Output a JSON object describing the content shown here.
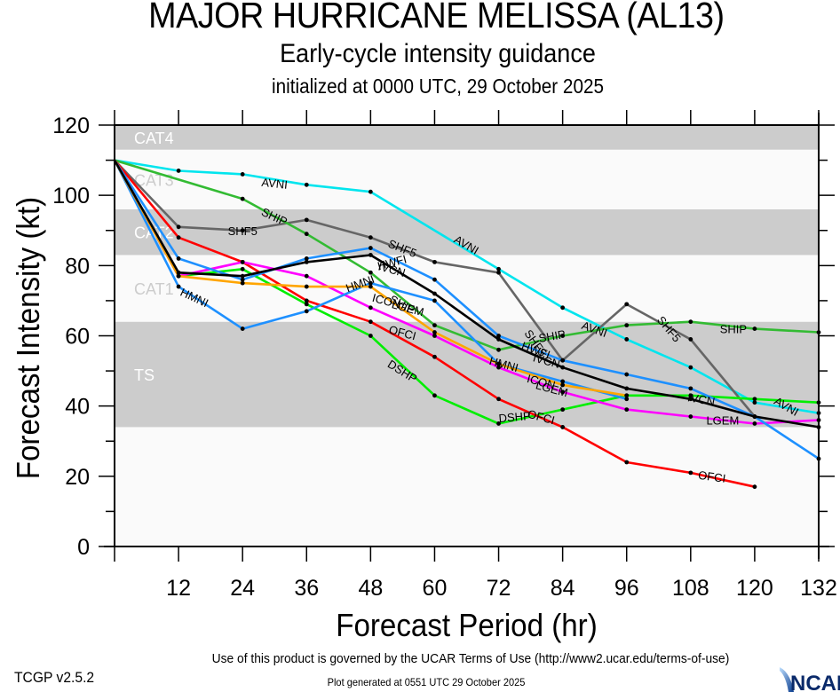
{
  "chart_data": {
    "type": "line",
    "title": "MAJOR HURRICANE MELISSA (AL13)",
    "subtitle": "Early-cycle intensity guidance",
    "initialized": "initialized at 0000 UTC, 29 October 2025",
    "xlabel": "Forecast Period (hr)",
    "ylabel": "Forecast Intensity (kt)",
    "xlim": [
      0,
      132
    ],
    "ylim": [
      0,
      120
    ],
    "xticks": [
      12,
      24,
      36,
      48,
      60,
      72,
      84,
      96,
      108,
      120,
      132
    ],
    "yticks": [
      0,
      20,
      40,
      60,
      80,
      100,
      120
    ],
    "grid": false,
    "bands": [
      {
        "label": "TS",
        "from": 34,
        "to": 64,
        "shade": "#cccccc",
        "label_color": "#ffffff"
      },
      {
        "label": "CAT1",
        "from": 64,
        "to": 83,
        "shade": "#fafafa",
        "label_color": "#cccccc"
      },
      {
        "label": "CAT2",
        "from": 83,
        "to": 96,
        "shade": "#cccccc",
        "label_color": "#ffffff"
      },
      {
        "label": "CAT3",
        "from": 96,
        "to": 113,
        "shade": "#fafafa",
        "label_color": "#cccccc"
      },
      {
        "label": "CAT4",
        "from": 113,
        "to": 120,
        "shade": "#cccccc",
        "label_color": "#ffffff"
      }
    ],
    "below_ts_shade": "#fafafa",
    "series": [
      {
        "name": "AVNI",
        "color": "#00e5ee",
        "x": [
          0,
          12,
          24,
          36,
          48,
          72,
          84,
          96,
          108,
          120,
          132
        ],
        "y": [
          110,
          107,
          106,
          103,
          101,
          79,
          68,
          59,
          51,
          41,
          38
        ]
      },
      {
        "name": "SHF5",
        "color": "#666666",
        "x": [
          0,
          12,
          24,
          36,
          48,
          60,
          72,
          84,
          96,
          108,
          120
        ],
        "y": [
          110,
          91,
          90,
          93,
          88,
          81,
          78,
          53,
          69,
          59,
          37
        ]
      },
      {
        "name": "SHIP",
        "color": "#33bb33",
        "x": [
          0,
          24,
          36,
          48,
          60,
          72,
          84,
          96,
          108,
          120,
          132
        ],
        "y": [
          110,
          99,
          89,
          78,
          63,
          56,
          60,
          63,
          64,
          62,
          61
        ]
      },
      {
        "name": "DSHP",
        "color": "#00ee00",
        "x": [
          0,
          12,
          24,
          36,
          48,
          60,
          72,
          84,
          96,
          108,
          120,
          132
        ],
        "y": [
          110,
          77,
          79,
          69,
          60,
          43,
          35,
          39,
          43,
          43,
          42,
          41
        ]
      },
      {
        "name": "OFCI",
        "color": "#ff0000",
        "x": [
          0,
          12,
          24,
          36,
          48,
          60,
          72,
          84,
          96,
          108,
          120
        ],
        "y": [
          110,
          88,
          81,
          70,
          64,
          54,
          42,
          34,
          24,
          21,
          17
        ]
      },
      {
        "name": "LGEM",
        "color": "#ff00ff",
        "x": [
          0,
          12,
          24,
          36,
          48,
          60,
          72,
          84,
          96,
          108,
          120,
          132
        ],
        "y": [
          110,
          77,
          81,
          77,
          68,
          60,
          51,
          44,
          39,
          37,
          35,
          36
        ]
      },
      {
        "name": "HWFI",
        "color": "#1e90ff",
        "x": [
          0,
          12,
          24,
          36,
          48,
          60,
          72,
          84,
          96,
          108,
          120,
          132
        ],
        "y": [
          110,
          82,
          76,
          82,
          85,
          76,
          60,
          53,
          49,
          45,
          37,
          25
        ]
      },
      {
        "name": "HMNI",
        "color": "#1e90ff",
        "x": [
          0,
          12,
          24,
          36,
          48,
          60,
          72,
          84,
          96
        ],
        "y": [
          110,
          74,
          62,
          67,
          75,
          70,
          52,
          47,
          42
        ]
      },
      {
        "name": "ICON",
        "color": "#ffa500",
        "x": [
          0,
          12,
          24,
          36,
          48,
          60,
          72,
          84,
          96
        ],
        "y": [
          110,
          77,
          75,
          74,
          74,
          61,
          52,
          46,
          43
        ]
      },
      {
        "name": "IVCN",
        "color": "#000000",
        "x": [
          0,
          12,
          24,
          36,
          48,
          60,
          72,
          84,
          96,
          108,
          120,
          132
        ],
        "y": [
          110,
          78,
          77,
          81,
          83,
          72,
          59,
          51,
          45,
          42,
          37,
          34
        ]
      }
    ]
  },
  "footer": {
    "terms": "Use of this product is governed by the UCAR Terms of Use (http://www2.ucar.edu/terms-of-use)",
    "version": "TCGP v2.5.2",
    "generated": "Plot generated at 0551 UTC   29 October 2025",
    "logo_text": "NCAR"
  }
}
